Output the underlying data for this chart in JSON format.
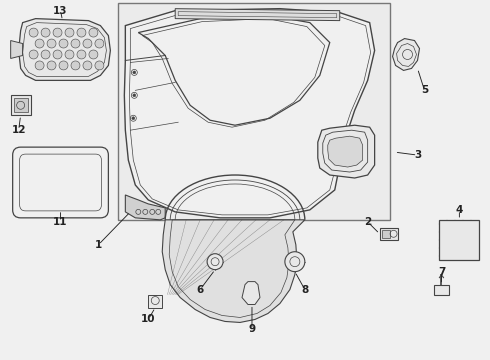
{
  "background_color": "#f0f0f0",
  "box_bg": "#e8e8e8",
  "white": "#ffffff",
  "line_color": "#444444",
  "dark": "#222222",
  "figure_width": 4.9,
  "figure_height": 3.6,
  "dpi": 100
}
